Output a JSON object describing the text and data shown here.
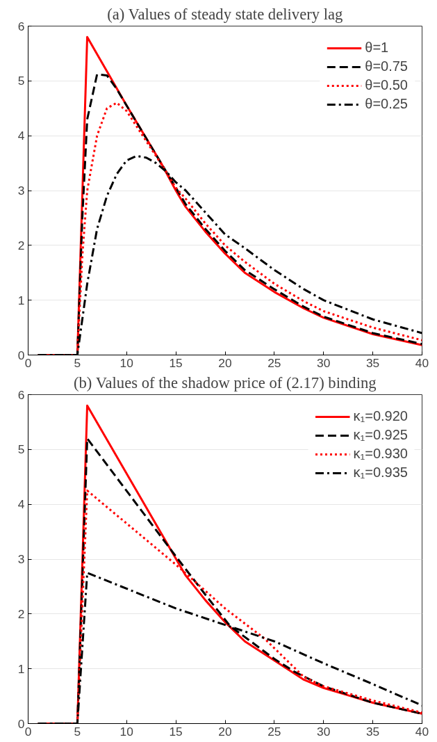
{
  "chart_data": [
    {
      "type": "line",
      "title": "(a) Values of steady state delivery lag",
      "xlim": [
        0,
        40
      ],
      "ylim": [
        0,
        6
      ],
      "xticks": [
        0,
        5,
        10,
        15,
        20,
        25,
        30,
        35,
        40
      ],
      "yticks": [
        0,
        1,
        2,
        3,
        4,
        5,
        6
      ],
      "grid": "y",
      "legend": "top right",
      "series": [
        {
          "name": "θ=1",
          "color": "#ff0000",
          "line_style": "solid",
          "x": [
            1,
            2,
            3,
            4,
            5,
            6,
            10,
            13.5,
            15,
            16,
            18,
            20,
            22,
            25,
            28,
            30,
            35,
            40
          ],
          "values": [
            0,
            0,
            0,
            0,
            0,
            5.8,
            4.55,
            3.5,
            3.0,
            2.7,
            2.25,
            1.85,
            1.5,
            1.15,
            0.85,
            0.68,
            0.38,
            0.18
          ]
        },
        {
          "name": "θ=0.75",
          "color": "#000000",
          "line_style": "dashed",
          "x": [
            1,
            2,
            3,
            4,
            5,
            5.5,
            6,
            7,
            8,
            9,
            10,
            13.5,
            15,
            16,
            18,
            20,
            22,
            25,
            28,
            30,
            35,
            40
          ],
          "values": [
            0,
            0,
            0,
            0,
            0,
            2.5,
            4.3,
            5.12,
            5.1,
            4.85,
            4.55,
            3.5,
            3.05,
            2.75,
            2.3,
            1.9,
            1.55,
            1.2,
            0.88,
            0.7,
            0.4,
            0.2
          ]
        },
        {
          "name": "θ=0.50",
          "color": "#ff0000",
          "line_style": "dotted",
          "x": [
            1,
            2,
            3,
            4,
            5,
            5.5,
            6,
            7,
            8,
            9,
            10,
            12,
            14,
            15,
            16,
            18,
            20,
            22,
            25,
            28,
            30,
            35,
            40
          ],
          "values": [
            0,
            0,
            0,
            0,
            0,
            1.8,
            3.0,
            4.0,
            4.5,
            4.6,
            4.45,
            3.9,
            3.35,
            3.05,
            2.85,
            2.4,
            2.0,
            1.7,
            1.3,
            0.98,
            0.8,
            0.5,
            0.27
          ]
        },
        {
          "name": "θ=0.25",
          "color": "#000000",
          "line_style": "dashdot",
          "x": [
            1,
            2,
            3,
            4,
            5,
            6,
            7,
            8,
            9,
            10,
            11,
            12,
            13,
            14,
            15,
            16,
            18,
            20,
            22,
            25,
            28,
            30,
            35,
            40
          ],
          "values": [
            0,
            0,
            0,
            0,
            0,
            1.3,
            2.3,
            2.9,
            3.3,
            3.55,
            3.63,
            3.6,
            3.5,
            3.35,
            3.15,
            3.0,
            2.6,
            2.2,
            1.95,
            1.55,
            1.2,
            1.0,
            0.65,
            0.4
          ]
        }
      ]
    },
    {
      "type": "line",
      "title": "(b) Values of the shadow price of (2.17) binding",
      "xlim": [
        0,
        40
      ],
      "ylim": [
        0,
        6
      ],
      "xticks": [
        0,
        5,
        10,
        15,
        20,
        25,
        30,
        35,
        40
      ],
      "yticks": [
        0,
        1,
        2,
        3,
        4,
        5,
        6
      ],
      "grid": "y",
      "legend": "top right",
      "series": [
        {
          "name": "κ₁=0.920",
          "color": "#ff0000",
          "line_style": "solid",
          "x": [
            1,
            2,
            3,
            4,
            5,
            6,
            16,
            18,
            20,
            22,
            25,
            28,
            30,
            35,
            40
          ],
          "values": [
            0,
            0,
            0,
            0,
            0,
            5.8,
            2.7,
            2.25,
            1.85,
            1.5,
            1.15,
            0.8,
            0.65,
            0.38,
            0.18
          ]
        },
        {
          "name": "κ₁=0.925",
          "color": "#000000",
          "line_style": "dashed",
          "x": [
            1,
            2,
            3,
            4,
            5,
            6,
            15,
            18,
            20.5,
            25,
            27,
            30,
            35,
            40
          ],
          "values": [
            0,
            0,
            0,
            0,
            0,
            5.2,
            3.05,
            2.35,
            1.78,
            1.18,
            0.95,
            0.68,
            0.38,
            0.18
          ]
        },
        {
          "name": "κ₁=0.930",
          "color": "#ff0000",
          "line_style": "dotted",
          "x": [
            1,
            2,
            3,
            4,
            5,
            6,
            15,
            20,
            24,
            28,
            30,
            35,
            40
          ],
          "values": [
            0,
            0,
            0,
            0,
            0,
            4.25,
            2.9,
            2.1,
            1.55,
            0.85,
            0.68,
            0.42,
            0.2
          ]
        },
        {
          "name": "κ₁=0.935",
          "color": "#000000",
          "line_style": "dashdot",
          "x": [
            1,
            2,
            3,
            4,
            5,
            6,
            15,
            20,
            25,
            30,
            35,
            40
          ],
          "values": [
            0,
            0,
            0,
            0,
            0,
            2.75,
            2.1,
            1.8,
            1.5,
            1.1,
            0.72,
            0.33
          ]
        }
      ]
    }
  ]
}
